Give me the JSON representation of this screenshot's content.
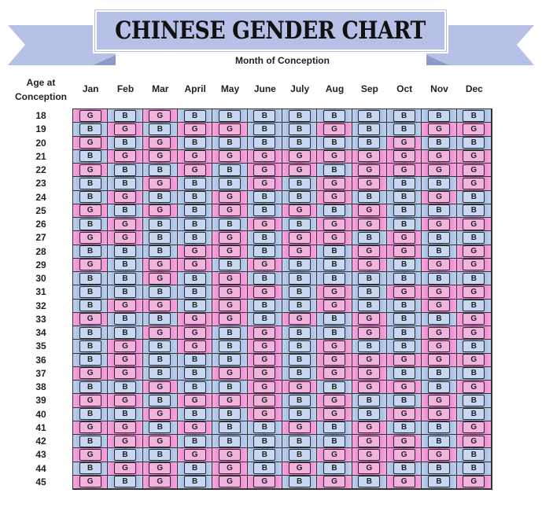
{
  "title": "CHINESE GENDER CHART",
  "x_axis_label": "Month of Conception",
  "y_axis_label": "Age at Conception",
  "colors": {
    "boy": "#8fa8dc",
    "girl": "#e36cc6",
    "banner": "#b7c0e7"
  },
  "chart_data": {
    "type": "table",
    "title": "CHINESE GENDER CHART",
    "xlabel": "Month of Conception",
    "ylabel": "Age at Conception",
    "columns": [
      "Jan",
      "Feb",
      "Mar",
      "April",
      "May",
      "June",
      "July",
      "Aug",
      "Sep",
      "Oct",
      "Nov",
      "Dec"
    ],
    "rows": [
      "18",
      "19",
      "20",
      "21",
      "22",
      "23",
      "24",
      "25",
      "26",
      "27",
      "28",
      "29",
      "30",
      "31",
      "32",
      "33",
      "34",
      "35",
      "36",
      "37",
      "38",
      "39",
      "40",
      "41",
      "42",
      "43",
      "44",
      "45"
    ],
    "values": [
      [
        "G",
        "B",
        "G",
        "B",
        "B",
        "B",
        "B",
        "B",
        "B",
        "B",
        "B",
        "B"
      ],
      [
        "B",
        "G",
        "B",
        "G",
        "G",
        "B",
        "B",
        "G",
        "B",
        "B",
        "G",
        "G"
      ],
      [
        "G",
        "B",
        "G",
        "B",
        "B",
        "B",
        "B",
        "B",
        "B",
        "G",
        "B",
        "B"
      ],
      [
        "B",
        "G",
        "G",
        "G",
        "G",
        "G",
        "G",
        "G",
        "G",
        "G",
        "G",
        "G"
      ],
      [
        "G",
        "B",
        "B",
        "G",
        "B",
        "G",
        "G",
        "B",
        "G",
        "G",
        "G",
        "G"
      ],
      [
        "B",
        "B",
        "G",
        "B",
        "B",
        "G",
        "B",
        "G",
        "G",
        "B",
        "B",
        "G"
      ],
      [
        "B",
        "G",
        "B",
        "B",
        "G",
        "B",
        "B",
        "G",
        "B",
        "B",
        "G",
        "B"
      ],
      [
        "G",
        "B",
        "G",
        "B",
        "G",
        "B",
        "G",
        "B",
        "G",
        "B",
        "B",
        "B"
      ],
      [
        "B",
        "G",
        "B",
        "B",
        "B",
        "G",
        "B",
        "G",
        "G",
        "B",
        "G",
        "G"
      ],
      [
        "G",
        "G",
        "B",
        "B",
        "G",
        "B",
        "G",
        "G",
        "B",
        "G",
        "B",
        "B"
      ],
      [
        "B",
        "B",
        "B",
        "G",
        "G",
        "B",
        "G",
        "B",
        "G",
        "G",
        "B",
        "G"
      ],
      [
        "G",
        "B",
        "G",
        "G",
        "B",
        "G",
        "B",
        "B",
        "G",
        "B",
        "G",
        "G"
      ],
      [
        "B",
        "B",
        "G",
        "B",
        "G",
        "B",
        "B",
        "B",
        "B",
        "B",
        "B",
        "B"
      ],
      [
        "B",
        "B",
        "B",
        "B",
        "G",
        "G",
        "B",
        "G",
        "B",
        "G",
        "G",
        "G"
      ],
      [
        "B",
        "G",
        "G",
        "B",
        "G",
        "B",
        "B",
        "G",
        "B",
        "B",
        "G",
        "B"
      ],
      [
        "G",
        "B",
        "B",
        "G",
        "G",
        "B",
        "G",
        "B",
        "G",
        "B",
        "B",
        "G"
      ],
      [
        "B",
        "B",
        "G",
        "G",
        "B",
        "G",
        "B",
        "B",
        "G",
        "B",
        "G",
        "G"
      ],
      [
        "B",
        "G",
        "B",
        "G",
        "B",
        "G",
        "B",
        "G",
        "B",
        "B",
        "G",
        "B"
      ],
      [
        "B",
        "G",
        "B",
        "B",
        "B",
        "G",
        "B",
        "G",
        "G",
        "G",
        "G",
        "G"
      ],
      [
        "G",
        "G",
        "B",
        "B",
        "G",
        "G",
        "B",
        "G",
        "G",
        "B",
        "B",
        "B"
      ],
      [
        "B",
        "B",
        "G",
        "B",
        "B",
        "G",
        "G",
        "B",
        "G",
        "G",
        "B",
        "G"
      ],
      [
        "G",
        "G",
        "B",
        "G",
        "G",
        "G",
        "B",
        "G",
        "B",
        "B",
        "G",
        "B"
      ],
      [
        "B",
        "B",
        "G",
        "B",
        "B",
        "G",
        "B",
        "G",
        "B",
        "G",
        "G",
        "B"
      ],
      [
        "G",
        "G",
        "B",
        "G",
        "B",
        "B",
        "G",
        "B",
        "G",
        "B",
        "B",
        "G"
      ],
      [
        "B",
        "G",
        "G",
        "B",
        "B",
        "B",
        "B",
        "B",
        "G",
        "G",
        "B",
        "G"
      ],
      [
        "G",
        "B",
        "B",
        "G",
        "G",
        "B",
        "B",
        "G",
        "G",
        "G",
        "G",
        "B"
      ],
      [
        "B",
        "G",
        "G",
        "B",
        "G",
        "B",
        "G",
        "B",
        "G",
        "B",
        "B",
        "B"
      ],
      [
        "G",
        "B",
        "G",
        "B",
        "G",
        "G",
        "B",
        "G",
        "B",
        "G",
        "B",
        "G"
      ]
    ]
  }
}
